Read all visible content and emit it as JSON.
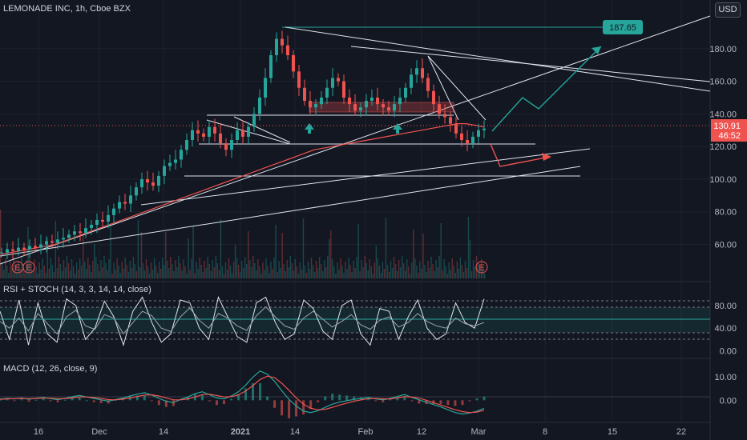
{
  "header": {
    "symbol": "LEMONADE INC, 1h, Cboe BZX",
    "currency": "USD"
  },
  "price_labels": {
    "target": "187.65",
    "last_price": "130.91",
    "countdown": "46:52"
  },
  "colors": {
    "background": "#131722",
    "up": "#26a69a",
    "down": "#ef5350",
    "ma": "#ef5350",
    "rsi": "#9ca3af",
    "stoch": "#e0e3eb",
    "trendline": "#e0e3eb",
    "target_line": "#26a69a",
    "projection_up": "#26a69a",
    "projection_down": "#ef5350"
  },
  "indicators": {
    "rsi_stoch": "RSI + STOCH (14, 3, 3, 14, 14, close)",
    "macd": "MACD (12, 26, close, 9)"
  },
  "earnings_markers": [
    "E",
    "E",
    "E"
  ],
  "chart_data": [
    {
      "type": "line",
      "title": "LEMONADE INC, 1h, Cboe BZX",
      "y_axis": {
        "ticks": [
          60,
          80,
          100,
          120,
          140,
          160,
          180
        ],
        "labels": [
          "60.00",
          "80.00",
          "100.00",
          "120.00",
          "140.00",
          "160.00",
          "180.00"
        ],
        "range": [
          48,
          200
        ]
      },
      "x_axis": {
        "tick_labels": [
          "16",
          "Dec",
          "14",
          "2021",
          "14",
          "Feb",
          "12",
          "Mar",
          "8",
          "15",
          "22"
        ]
      },
      "series": [
        {
          "values": [
            55,
            57,
            56,
            58,
            57,
            59,
            58,
            60,
            62,
            61,
            63,
            64,
            66,
            68,
            67,
            70,
            72,
            75,
            74,
            78,
            82,
            86,
            85,
            90,
            95,
            100,
            98,
            96,
            102,
            108,
            110,
            112,
            118,
            124,
            130,
            128,
            126,
            132,
            128,
            122,
            118,
            124,
            130,
            126,
            132,
            140,
            150,
            162,
            176,
            186,
            182,
            176,
            166,
            156,
            148,
            144,
            146,
            150,
            156,
            162,
            160,
            150,
            146,
            142,
            144,
            148,
            150,
            146,
            144,
            142,
            146,
            150,
            156,
            164,
            168,
            162,
            154,
            146,
            140,
            138,
            134,
            128,
            124,
            122,
            126,
            130,
            131
          ],
          "range": [
            0,
            86
          ]
        }
      ],
      "moving_average": [
        54,
        55,
        56,
        57,
        58,
        59,
        60,
        62,
        64,
        66,
        68,
        70,
        72,
        74,
        76,
        78,
        80,
        82,
        84,
        86,
        88,
        90,
        92,
        94,
        96,
        98,
        100,
        102,
        104,
        106,
        108,
        110,
        112,
        114,
        116,
        118,
        119,
        120,
        121,
        122,
        123,
        124,
        125,
        126,
        127,
        128,
        129,
        130,
        131,
        132,
        133,
        134,
        134,
        133,
        132
      ],
      "last_price": 130.91,
      "target": 187.65,
      "gridlines": true
    },
    {
      "type": "line",
      "title": "RSI + STOCH (14, 3, 3, 14, 14, close)",
      "y_axis": {
        "ticks": [
          0,
          40,
          80
        ],
        "labels": [
          "0.00",
          "40.00",
          "80.00"
        ],
        "range": [
          -8,
          100
        ]
      },
      "levels": [
        30,
        50,
        70,
        80,
        20
      ],
      "series": [
        {
          "values": [
            52,
            40,
            58,
            35,
            66,
            48,
            30,
            60,
            72,
            44,
            38,
            64,
            58,
            30,
            50,
            70,
            62,
            40,
            34,
            60,
            76,
            54,
            40,
            66,
            58,
            44,
            36,
            62,
            78,
            60,
            44,
            38,
            58,
            70,
            56,
            42,
            52,
            64,
            46,
            38,
            54,
            60,
            42,
            50,
            66,
            52,
            44,
            40,
            58,
            48,
            44,
            50
          ]
        },
        {
          "values": [
            70,
            20,
            90,
            10,
            85,
            30,
            15,
            92,
            80,
            20,
            40,
            88,
            60,
            10,
            70,
            95,
            50,
            15,
            30,
            90,
            85,
            40,
            20,
            95,
            60,
            25,
            15,
            85,
            95,
            50,
            20,
            30,
            90,
            75,
            35,
            20,
            80,
            90,
            30,
            10,
            75,
            70,
            20,
            60,
            90,
            40,
            20,
            30,
            85,
            50,
            40,
            92
          ]
        }
      ]
    },
    {
      "type": "bar",
      "title": "MACD (12, 26, close, 9)",
      "y_axis": {
        "ticks": [
          0,
          10
        ],
        "labels": [
          "0.00",
          "10.00"
        ],
        "range": [
          -8,
          15
        ]
      },
      "series": [
        {
          "values": [
            0.5,
            0.8,
            0.6,
            1.0,
            0.4,
            0.9,
            1.2,
            0.7,
            0.3,
            0.8,
            1.5,
            2.0,
            1.4,
            0.8,
            0.2,
            -0.4,
            0.3,
            1.0,
            1.8,
            2.6,
            3.2,
            2.2,
            0.8,
            -0.4,
            -1.0,
            0.4,
            1.4,
            2.8,
            3.6,
            2.4,
            1.0,
            0.6,
            1.8,
            3.6,
            6.4,
            9.8,
            12.4,
            11.0,
            8.0,
            4.0,
            0.4,
            -2.4,
            -4.6,
            -5.2,
            -4.4,
            -3.0,
            -1.6,
            -0.8,
            -0.2,
            0.4,
            0.8,
            1.2,
            0.6,
            0.2,
            0.8,
            1.6,
            2.4,
            1.2,
            0.2,
            -0.8,
            -1.8,
            -2.8,
            -4.0,
            -5.2,
            -5.8,
            -5.4,
            -4.6,
            -3.4
          ]
        },
        {
          "values": [
            0.4,
            0.6,
            0.7,
            0.8,
            0.7,
            0.8,
            0.9,
            0.9,
            0.7,
            0.7,
            1.0,
            1.4,
            1.4,
            1.2,
            0.8,
            0.3,
            0.2,
            0.5,
            1.0,
            1.6,
            2.2,
            2.3,
            1.8,
            1.0,
            0.2,
            0.2,
            0.6,
            1.4,
            2.4,
            2.6,
            2.0,
            1.4,
            1.5,
            2.3,
            3.9,
            6.2,
            8.8,
            10.2,
            9.6,
            7.2,
            4.2,
            1.0,
            -1.6,
            -3.4,
            -4.0,
            -3.8,
            -3.0,
            -2.0,
            -1.2,
            -0.4,
            0.2,
            0.7,
            0.8,
            0.6,
            0.6,
            1.0,
            1.5,
            1.4,
            0.9,
            0.0,
            -1.0,
            -2.0,
            -3.0,
            -4.0,
            -4.8,
            -5.2,
            -5.0,
            -4.2
          ]
        }
      ]
    }
  ]
}
